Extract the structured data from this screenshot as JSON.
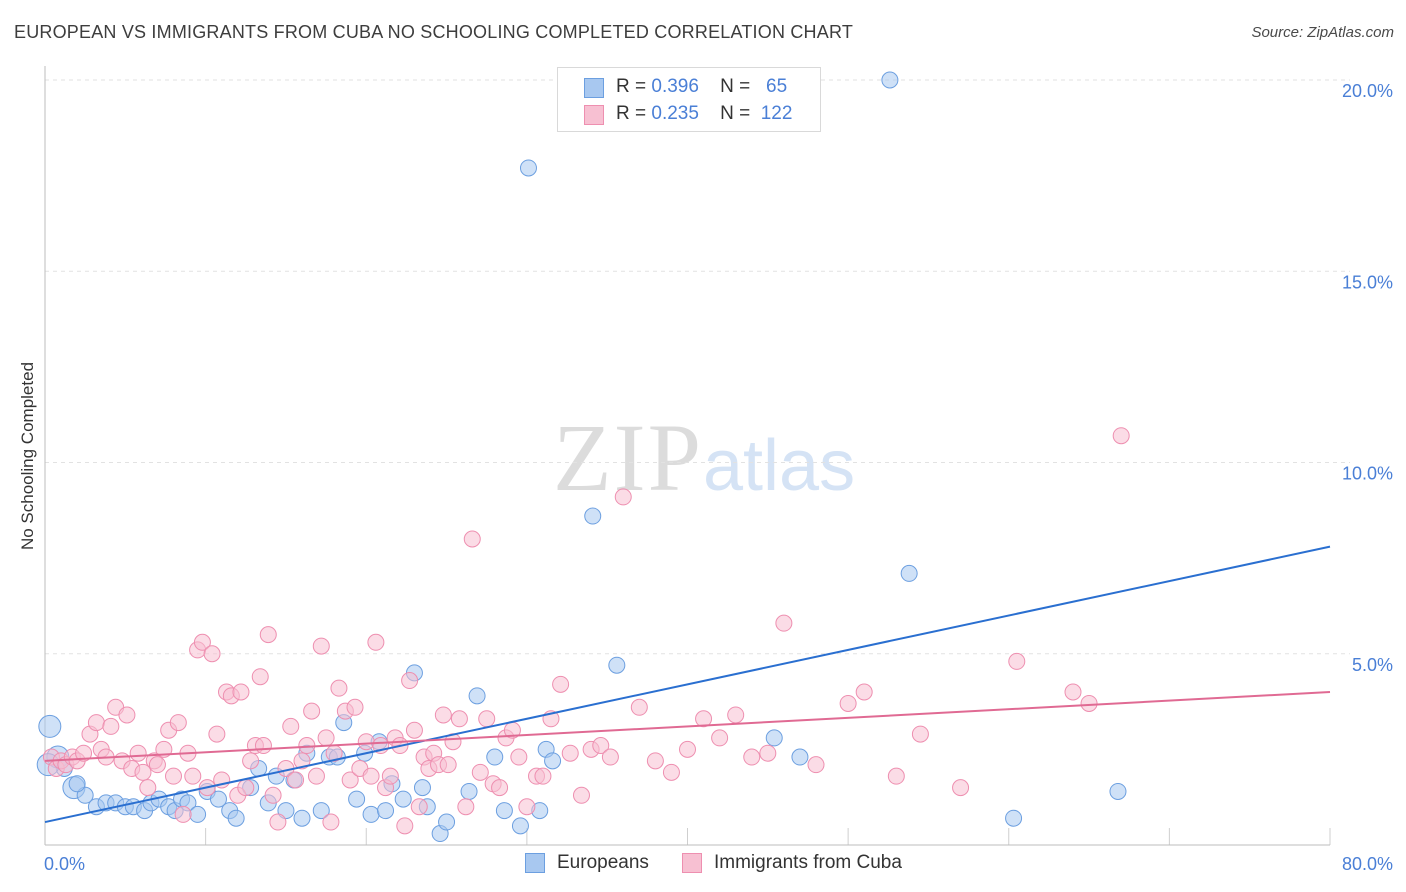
{
  "header": {
    "title": "EUROPEAN VS IMMIGRANTS FROM CUBA NO SCHOOLING COMPLETED CORRELATION CHART",
    "source": "Source: ZipAtlas.com"
  },
  "watermark": {
    "zip": "ZIP",
    "atlas": "atlas"
  },
  "legend": {
    "rows": [
      {
        "r_label": "R =",
        "r_value": "0.396",
        "n_label": "N =",
        "n_value": "65",
        "color": "#a8c8f0",
        "border": "#6c9fe0"
      },
      {
        "r_label": "R =",
        "r_value": "0.235",
        "n_label": "N =",
        "n_value": "122",
        "color": "#f7c0d2",
        "border": "#ee8fb0"
      }
    ]
  },
  "bottom_legend": [
    {
      "label": "Europeans",
      "color": "#a8c8f0",
      "border": "#6c9fe0"
    },
    {
      "label": "Immigrants from Cuba",
      "color": "#f7c0d2",
      "border": "#ee8fb0"
    }
  ],
  "chart_data": {
    "type": "scatter",
    "title": "EUROPEAN VS IMMIGRANTS FROM CUBA NO SCHOOLING COMPLETED CORRELATION CHART",
    "xlabel": "",
    "ylabel": "No Schooling Completed",
    "xlim": [
      0,
      80
    ],
    "ylim": [
      0,
      20
    ],
    "x_tick_labels": [
      "0.0%",
      "80.0%"
    ],
    "y_ticks": [
      5,
      10,
      15,
      20
    ],
    "y_tick_labels": [
      "5.0%",
      "10.0%",
      "15.0%",
      "20.0%"
    ],
    "grid": true,
    "legend_position": "top-center",
    "series": [
      {
        "name": "Europeans",
        "color": "#6c9fe0",
        "fill": "#a8c8f0",
        "line_color": "#2a6fd0",
        "trend": {
          "x": [
            0,
            80
          ],
          "y": [
            0.6,
            7.8
          ]
        },
        "points": [
          [
            0.3,
            3.1
          ],
          [
            0.8,
            2.3
          ],
          [
            1.2,
            2.0
          ],
          [
            1.8,
            1.5
          ],
          [
            2.5,
            1.3
          ],
          [
            3.2,
            1.0
          ],
          [
            3.8,
            1.1
          ],
          [
            4.4,
            1.1
          ],
          [
            5.0,
            1.0
          ],
          [
            5.5,
            1.0
          ],
          [
            6.2,
            0.9
          ],
          [
            6.6,
            1.1
          ],
          [
            7.1,
            1.2
          ],
          [
            7.7,
            1.0
          ],
          [
            8.1,
            0.9
          ],
          [
            8.5,
            1.2
          ],
          [
            8.9,
            1.1
          ],
          [
            9.5,
            0.8
          ],
          [
            10.1,
            1.4
          ],
          [
            10.8,
            1.2
          ],
          [
            11.5,
            0.9
          ],
          [
            11.9,
            0.7
          ],
          [
            12.8,
            1.5
          ],
          [
            13.3,
            2.0
          ],
          [
            13.9,
            1.1
          ],
          [
            14.4,
            1.8
          ],
          [
            15.0,
            0.9
          ],
          [
            15.5,
            1.7
          ],
          [
            16.0,
            0.7
          ],
          [
            16.3,
            2.4
          ],
          [
            17.2,
            0.9
          ],
          [
            17.7,
            2.3
          ],
          [
            18.2,
            2.3
          ],
          [
            18.6,
            3.2
          ],
          [
            19.4,
            1.2
          ],
          [
            19.9,
            2.4
          ],
          [
            20.3,
            0.8
          ],
          [
            20.8,
            2.7
          ],
          [
            21.2,
            0.9
          ],
          [
            21.6,
            1.6
          ],
          [
            22.3,
            1.2
          ],
          [
            23.0,
            4.5
          ],
          [
            23.5,
            1.5
          ],
          [
            23.8,
            1.0
          ],
          [
            24.6,
            0.3
          ],
          [
            25.0,
            0.6
          ],
          [
            26.4,
            1.4
          ],
          [
            26.9,
            3.9
          ],
          [
            28.0,
            2.3
          ],
          [
            28.6,
            0.9
          ],
          [
            29.6,
            0.5
          ],
          [
            30.8,
            0.9
          ],
          [
            31.2,
            2.5
          ],
          [
            31.6,
            2.2
          ],
          [
            30.1,
            17.7
          ],
          [
            34.1,
            8.6
          ],
          [
            35.6,
            4.7
          ],
          [
            45.4,
            2.8
          ],
          [
            47.0,
            2.3
          ],
          [
            52.6,
            20.0
          ],
          [
            53.8,
            7.1
          ],
          [
            60.3,
            0.7
          ],
          [
            66.8,
            1.4
          ],
          [
            0.2,
            2.1
          ],
          [
            2.0,
            1.6
          ]
        ]
      },
      {
        "name": "Immigrants from Cuba",
        "color": "#ee8fb0",
        "fill": "#f7c0d2",
        "line_color": "#e06a93",
        "trend": {
          "x": [
            0,
            80
          ],
          "y": [
            2.2,
            4.0
          ]
        },
        "points": [
          [
            0.4,
            2.3
          ],
          [
            0.7,
            2.0
          ],
          [
            1.0,
            2.2
          ],
          [
            1.3,
            2.1
          ],
          [
            1.7,
            2.3
          ],
          [
            2.0,
            2.2
          ],
          [
            2.4,
            2.4
          ],
          [
            2.8,
            2.9
          ],
          [
            3.2,
            3.2
          ],
          [
            3.5,
            2.5
          ],
          [
            3.8,
            2.3
          ],
          [
            4.1,
            3.1
          ],
          [
            4.4,
            3.6
          ],
          [
            4.8,
            2.2
          ],
          [
            5.1,
            3.4
          ],
          [
            5.4,
            2.0
          ],
          [
            5.8,
            2.4
          ],
          [
            6.1,
            1.9
          ],
          [
            6.4,
            1.5
          ],
          [
            6.8,
            2.2
          ],
          [
            7.0,
            2.1
          ],
          [
            7.4,
            2.5
          ],
          [
            7.7,
            3.0
          ],
          [
            8.0,
            1.8
          ],
          [
            8.3,
            3.2
          ],
          [
            8.6,
            0.8
          ],
          [
            8.9,
            2.4
          ],
          [
            9.2,
            1.8
          ],
          [
            9.5,
            5.1
          ],
          [
            9.8,
            5.3
          ],
          [
            10.1,
            1.5
          ],
          [
            10.4,
            5.0
          ],
          [
            10.7,
            2.9
          ],
          [
            11.0,
            1.7
          ],
          [
            11.3,
            4.0
          ],
          [
            11.6,
            3.9
          ],
          [
            12.0,
            1.3
          ],
          [
            12.2,
            4.0
          ],
          [
            12.5,
            1.5
          ],
          [
            12.8,
            2.2
          ],
          [
            13.1,
            2.6
          ],
          [
            13.4,
            4.4
          ],
          [
            13.6,
            2.6
          ],
          [
            13.9,
            5.5
          ],
          [
            14.2,
            1.3
          ],
          [
            14.5,
            0.6
          ],
          [
            15.0,
            2.0
          ],
          [
            15.3,
            3.1
          ],
          [
            15.6,
            1.7
          ],
          [
            16.0,
            2.2
          ],
          [
            16.3,
            2.6
          ],
          [
            16.6,
            3.5
          ],
          [
            16.9,
            1.8
          ],
          [
            17.2,
            5.2
          ],
          [
            17.5,
            2.8
          ],
          [
            17.8,
            0.6
          ],
          [
            18.0,
            2.4
          ],
          [
            18.3,
            4.1
          ],
          [
            18.7,
            3.5
          ],
          [
            19.0,
            1.7
          ],
          [
            19.3,
            3.6
          ],
          [
            19.6,
            2.0
          ],
          [
            20.0,
            2.7
          ],
          [
            20.3,
            1.8
          ],
          [
            20.6,
            5.3
          ],
          [
            20.9,
            2.6
          ],
          [
            21.2,
            1.5
          ],
          [
            21.5,
            1.8
          ],
          [
            21.8,
            2.8
          ],
          [
            22.1,
            2.6
          ],
          [
            22.4,
            0.5
          ],
          [
            22.7,
            4.3
          ],
          [
            23.0,
            3.0
          ],
          [
            23.3,
            1.0
          ],
          [
            23.6,
            2.3
          ],
          [
            23.9,
            2.0
          ],
          [
            24.2,
            2.4
          ],
          [
            24.5,
            2.1
          ],
          [
            24.8,
            3.4
          ],
          [
            25.1,
            2.1
          ],
          [
            25.4,
            2.7
          ],
          [
            25.8,
            3.3
          ],
          [
            26.2,
            1.0
          ],
          [
            26.6,
            8.0
          ],
          [
            27.1,
            1.9
          ],
          [
            27.5,
            3.3
          ],
          [
            27.9,
            1.6
          ],
          [
            28.3,
            1.5
          ],
          [
            28.7,
            2.8
          ],
          [
            29.1,
            3.0
          ],
          [
            29.5,
            2.3
          ],
          [
            30.0,
            1.0
          ],
          [
            30.6,
            1.8
          ],
          [
            31.0,
            1.8
          ],
          [
            31.5,
            3.3
          ],
          [
            32.1,
            4.2
          ],
          [
            32.7,
            2.4
          ],
          [
            33.4,
            1.3
          ],
          [
            34.0,
            2.5
          ],
          [
            34.6,
            2.6
          ],
          [
            35.2,
            2.3
          ],
          [
            36.0,
            9.1
          ],
          [
            37.0,
            3.6
          ],
          [
            38.0,
            2.2
          ],
          [
            39.0,
            1.9
          ],
          [
            40.0,
            2.5
          ],
          [
            41.0,
            3.3
          ],
          [
            42.0,
            2.8
          ],
          [
            43.0,
            3.4
          ],
          [
            44.0,
            2.3
          ],
          [
            45.0,
            2.4
          ],
          [
            46.0,
            5.8
          ],
          [
            48.0,
            2.1
          ],
          [
            50.0,
            3.7
          ],
          [
            51.0,
            4.0
          ],
          [
            53.0,
            1.8
          ],
          [
            54.5,
            2.9
          ],
          [
            57.0,
            1.5
          ],
          [
            60.5,
            4.8
          ],
          [
            64.0,
            4.0
          ],
          [
            67.0,
            10.7
          ],
          [
            65.0,
            3.7
          ]
        ]
      }
    ]
  }
}
